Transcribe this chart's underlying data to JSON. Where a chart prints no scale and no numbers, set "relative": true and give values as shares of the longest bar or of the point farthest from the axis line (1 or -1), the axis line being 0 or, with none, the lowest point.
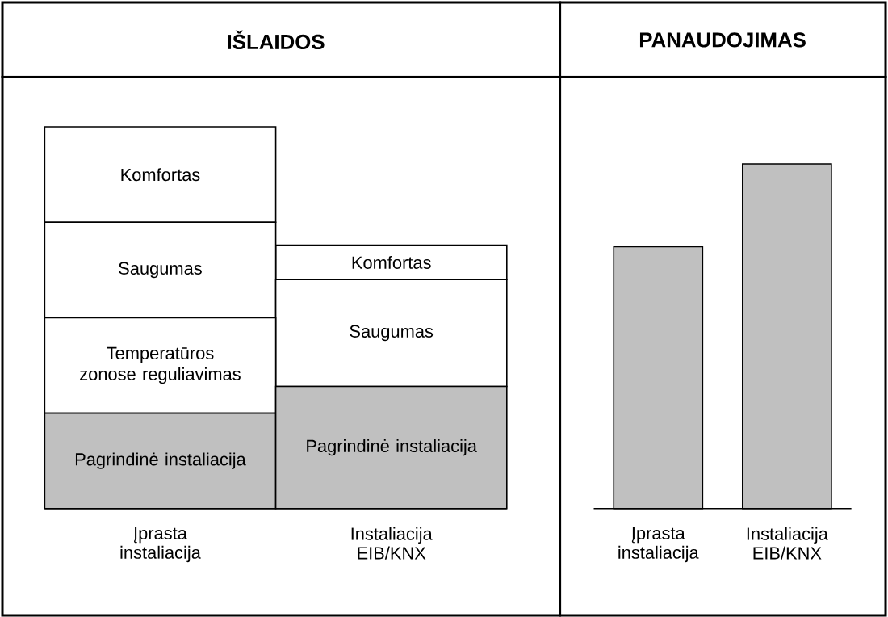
{
  "chart_data": [
    {
      "type": "bar",
      "title": "IŠLAIDOS",
      "stacked": true,
      "relative": true,
      "categories": [
        "Įprasta instaliacija",
        "Instaliacija EIB/KNX"
      ],
      "series": [
        {
          "name": "Pagrindinė instaliacija",
          "color": "#c0c0c0",
          "values": [
            0.25,
            0.32
          ]
        },
        {
          "name": "Temperatūros zonose reguliavimas",
          "color": "#ffffff",
          "values": [
            0.25,
            null
          ]
        },
        {
          "name": "Saugumas",
          "color": "#ffffff",
          "values": [
            0.25,
            0.28
          ]
        },
        {
          "name": "Komfortas",
          "color": "#ffffff",
          "values": [
            0.25,
            0.09
          ]
        }
      ]
    },
    {
      "type": "bar",
      "title": "PANAUDOJIMAS",
      "relative": true,
      "categories": [
        "Įprasta instaliacija",
        "Instaliacija EIB/KNX"
      ],
      "values": [
        0.76,
        1
      ],
      "color": "#c0c0c0"
    }
  ]
}
